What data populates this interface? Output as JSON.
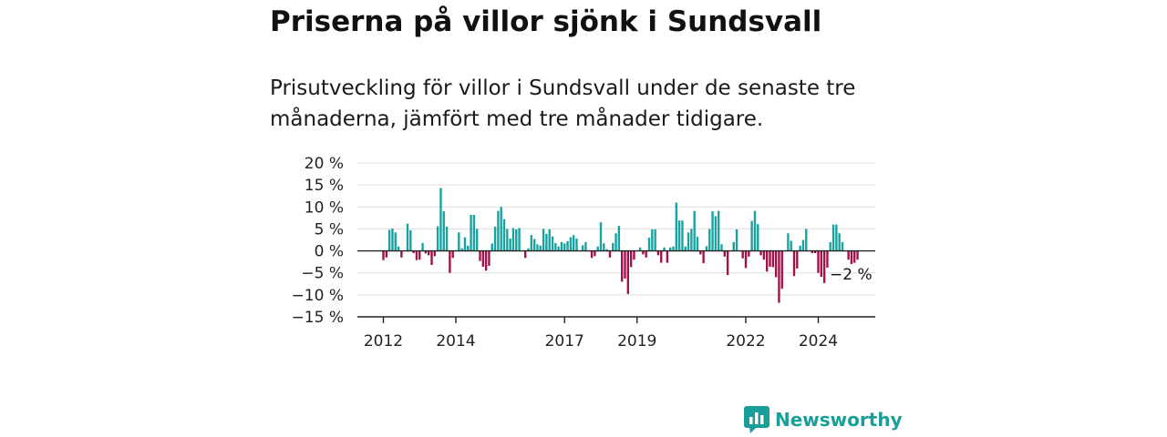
{
  "header": {
    "title": "Priserna på villor sjönk i Sundsvall",
    "subtitle": "Prisutveckling för villor i Sundsvall under de senaste tre månaderna, jämfört med tre månader tidigare."
  },
  "brand": {
    "name": "Newsworthy",
    "color": "#1a9e9a"
  },
  "colors": {
    "positive": "#17a3a0",
    "negative": "#a3104a",
    "grid": "#dddddd",
    "axis": "#222222"
  },
  "chart_data": {
    "type": "bar",
    "x_start": "2012-01",
    "x_end": "2025-03",
    "x_ticks": [
      "2012",
      "2014",
      "2017",
      "2019",
      "2022",
      "2024"
    ],
    "y_ticks": [
      "20 %",
      "15 %",
      "10 %",
      "5 %",
      "0 %",
      "−5 %",
      "−10 %",
      "−15 %"
    ],
    "ylim": [
      -15,
      20
    ],
    "unit": "%",
    "last_value_label": "−2 %",
    "values": [
      -2.1,
      -1.5,
      4.8,
      5.1,
      4.2,
      1.0,
      -1.5,
      0.0,
      6.2,
      4.7,
      -0.5,
      -2.1,
      -2.0,
      1.8,
      -0.6,
      -1.0,
      -3.2,
      -1.2,
      5.6,
      14.3,
      9.0,
      5.5,
      -5.0,
      -1.6,
      0.0,
      4.2,
      0.6,
      3.1,
      1.2,
      8.2,
      8.2,
      5.0,
      -2.3,
      -3.6,
      -4.5,
      -3.4,
      1.7,
      5.5,
      9.1,
      10.0,
      7.2,
      5.0,
      2.8,
      5.2,
      4.9,
      5.2,
      0.1,
      -1.6,
      0.6,
      3.6,
      2.7,
      1.5,
      1.2,
      5.0,
      3.9,
      4.9,
      3.3,
      1.8,
      1.0,
      2.0,
      1.7,
      2.2,
      3.1,
      3.6,
      2.8,
      0.0,
      1.3,
      2.0,
      0.0,
      -1.6,
      -1.2,
      1.0,
      6.5,
      1.7,
      0.4,
      -1.5,
      1.8,
      4.0,
      5.7,
      -7.0,
      -6.3,
      -9.8,
      -3.7,
      -2.0,
      0.0,
      0.8,
      -0.8,
      -1.5,
      3.0,
      4.9,
      4.9,
      -1.0,
      -2.7,
      0.8,
      -2.7,
      0.8,
      1.0,
      11.0,
      6.9,
      6.9,
      1.0,
      4.2,
      5.0,
      9.1,
      3.2,
      -0.8,
      -2.8,
      1.1,
      5.0,
      9.0,
      7.9,
      9.1,
      1.5,
      -1.3,
      -5.5,
      0.0,
      2.0,
      4.9,
      0.0,
      -1.7,
      -3.9,
      -1.3,
      6.8,
      9.1,
      6.1,
      -1.0,
      -2.0,
      -4.7,
      -3.6,
      -3.7,
      -6.0,
      -11.8,
      -8.6,
      0.0,
      4.0,
      2.3,
      -5.7,
      -4.0,
      1.2,
      2.5,
      5.0,
      0.0,
      -0.5,
      -0.5,
      -5.0,
      -5.9,
      -7.3,
      -3.8,
      2.0,
      6.0,
      6.0,
      4.0,
      2.0,
      0.0,
      -2.0,
      -3.0,
      -2.7,
      -2.0
    ]
  }
}
